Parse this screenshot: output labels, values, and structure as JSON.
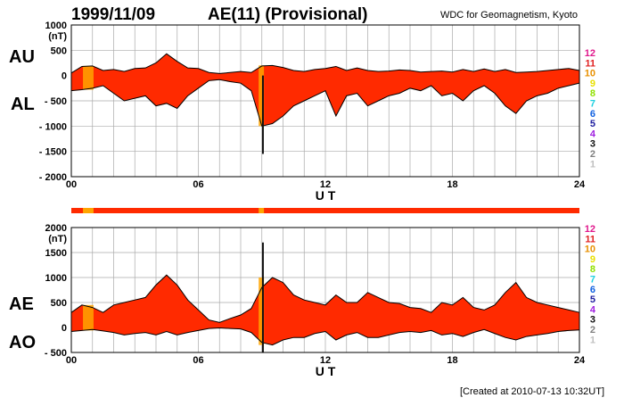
{
  "header": {
    "date": "1999/11/09",
    "index_title": "AE(11) (Provisional)",
    "source": "WDC for Geomagnetism, Kyoto"
  },
  "footer": {
    "created": "[Created at 2010-07-13 10:32UT]"
  },
  "colors": {
    "fill_main": "#ff2a00",
    "fill_alt": "#ffa500",
    "spike": "#111111",
    "grid": "#aaaaaa"
  },
  "chart_data": [
    {
      "type": "area",
      "name": "AU/AL panel",
      "xlabel": "U T",
      "ylabel": "(nT)",
      "y_tick_labels": [
        "1000",
        "500",
        "0",
        "- 500",
        "- 1000",
        "- 1500",
        "- 2000"
      ],
      "y_ticks": [
        1000,
        500,
        0,
        -500,
        -1000,
        -1500,
        -2000
      ],
      "x_tick_labels": [
        "00",
        "06",
        "12",
        "18",
        "24"
      ],
      "x_ticks": [
        0,
        6,
        12,
        18,
        24
      ],
      "xlim": [
        0,
        24
      ],
      "ylim": [
        -2000,
        1000
      ],
      "grid": true,
      "left_labels": [
        "AU",
        "AL"
      ],
      "series": [
        {
          "name": "AU",
          "x": [
            0,
            0.5,
            1,
            1.5,
            2,
            2.5,
            3,
            3.5,
            4,
            4.5,
            5,
            5.5,
            6,
            6.5,
            7,
            7.5,
            8,
            8.5,
            9,
            9.5,
            10,
            10.5,
            11,
            11.5,
            12,
            12.5,
            13,
            13.5,
            14,
            14.5,
            15,
            15.5,
            16,
            16.5,
            17,
            17.5,
            18,
            18.5,
            19,
            19.5,
            20,
            20.5,
            21,
            21.5,
            22,
            22.5,
            23,
            23.5,
            24
          ],
          "values": [
            50,
            180,
            190,
            100,
            120,
            80,
            140,
            150,
            250,
            430,
            280,
            150,
            140,
            60,
            40,
            60,
            80,
            60,
            190,
            200,
            160,
            100,
            80,
            120,
            140,
            180,
            100,
            150,
            100,
            80,
            90,
            110,
            100,
            70,
            80,
            90,
            70,
            120,
            80,
            130,
            80,
            120,
            60,
            70,
            80,
            100,
            120,
            140,
            100
          ]
        },
        {
          "name": "AL",
          "x": [
            0,
            0.5,
            1,
            1.5,
            2,
            2.5,
            3,
            3.5,
            4,
            4.5,
            5,
            5.5,
            6,
            6.5,
            7,
            7.5,
            8,
            8.5,
            9,
            9.5,
            10,
            10.5,
            11,
            11.5,
            12,
            12.5,
            13,
            13.5,
            14,
            14.5,
            15,
            15.5,
            16,
            16.5,
            17,
            17.5,
            18,
            18.5,
            19,
            19.5,
            20,
            20.5,
            21,
            21.5,
            22,
            22.5,
            23,
            23.5,
            24
          ],
          "values": [
            -300,
            -280,
            -250,
            -200,
            -350,
            -500,
            -450,
            -400,
            -600,
            -550,
            -650,
            -400,
            -250,
            -100,
            -80,
            -120,
            -150,
            -300,
            -1000,
            -950,
            -800,
            -600,
            -500,
            -400,
            -300,
            -800,
            -400,
            -350,
            -600,
            -500,
            -400,
            -350,
            -250,
            -300,
            -200,
            -400,
            -350,
            -500,
            -300,
            -200,
            -350,
            -600,
            -750,
            -500,
            -400,
            -350,
            -250,
            -200,
            -150
          ]
        }
      ],
      "spikes": [
        {
          "x": 9.05,
          "min": -1550,
          "max": 0
        }
      ],
      "highlight_bands": [
        {
          "start": 0.55,
          "end": 1.05
        },
        {
          "start": 8.85,
          "end": 9.1
        }
      ]
    },
    {
      "type": "area",
      "name": "AE/AO panel",
      "xlabel": "U T",
      "ylabel": "(nT)",
      "y_tick_labels": [
        "2000",
        "1500",
        "1000",
        "500",
        "0",
        "- 500"
      ],
      "y_ticks": [
        2000,
        1500,
        1000,
        500,
        0,
        -500
      ],
      "x_tick_labels": [
        "00",
        "06",
        "12",
        "18",
        "24"
      ],
      "x_ticks": [
        0,
        6,
        12,
        18,
        24
      ],
      "xlim": [
        0,
        24
      ],
      "ylim": [
        -500,
        2000
      ],
      "grid": true,
      "left_labels": [
        "AE",
        "AO"
      ],
      "series": [
        {
          "name": "AE",
          "x": [
            0,
            0.5,
            1,
            1.5,
            2,
            2.5,
            3,
            3.5,
            4,
            4.5,
            5,
            5.5,
            6,
            6.5,
            7,
            7.5,
            8,
            8.5,
            9,
            9.5,
            10,
            10.5,
            11,
            11.5,
            12,
            12.5,
            13,
            13.5,
            14,
            14.5,
            15,
            15.5,
            16,
            16.5,
            17,
            17.5,
            18,
            18.5,
            19,
            19.5,
            20,
            20.5,
            21,
            21.5,
            22,
            22.5,
            23,
            23.5,
            24
          ],
          "values": [
            300,
            450,
            400,
            300,
            450,
            500,
            550,
            600,
            850,
            1050,
            850,
            550,
            350,
            150,
            100,
            180,
            250,
            380,
            800,
            1000,
            900,
            650,
            550,
            500,
            450,
            650,
            500,
            500,
            700,
            600,
            500,
            480,
            400,
            380,
            300,
            500,
            450,
            600,
            400,
            350,
            450,
            700,
            900,
            600,
            500,
            450,
            400,
            350,
            300
          ]
        },
        {
          "name": "AO",
          "x": [
            0,
            0.5,
            1,
            1.5,
            2,
            2.5,
            3,
            3.5,
            4,
            4.5,
            5,
            5.5,
            6,
            6.5,
            7,
            7.5,
            8,
            8.5,
            9,
            9.5,
            10,
            10.5,
            11,
            11.5,
            12,
            12.5,
            13,
            13.5,
            14,
            14.5,
            15,
            15.5,
            16,
            16.5,
            17,
            17.5,
            18,
            18.5,
            19,
            19.5,
            20,
            20.5,
            21,
            21.5,
            22,
            22.5,
            23,
            23.5,
            24
          ],
          "values": [
            -80,
            -60,
            -40,
            -70,
            -100,
            -150,
            -120,
            -100,
            -150,
            -80,
            -150,
            -100,
            -60,
            -20,
            -10,
            -20,
            -30,
            -100,
            -300,
            -350,
            -250,
            -200,
            -200,
            -120,
            -80,
            -250,
            -150,
            -100,
            -200,
            -200,
            -150,
            -100,
            -80,
            -100,
            -60,
            -150,
            -120,
            -180,
            -100,
            -40,
            -120,
            -200,
            -250,
            -180,
            -150,
            -120,
            -80,
            -60,
            -50
          ]
        }
      ],
      "spikes": [
        {
          "x": 9.05,
          "min": -500,
          "max": 1700
        }
      ],
      "highlight_bands": [
        {
          "start": 0.55,
          "end": 1.05
        },
        {
          "start": 8.85,
          "end": 9.1
        }
      ]
    }
  ],
  "level_legend": {
    "labels": [
      "12",
      "11",
      "10",
      "9",
      "8",
      "7",
      "6",
      "5",
      "4",
      "3",
      "2",
      "1"
    ],
    "colors": [
      "#e0188c",
      "#e02020",
      "#e89000",
      "#e8e000",
      "#90e000",
      "#20d0e0",
      "#1060e0",
      "#2020a0",
      "#a020e0",
      "#101010",
      "#808080",
      "#c0c0c0"
    ]
  }
}
